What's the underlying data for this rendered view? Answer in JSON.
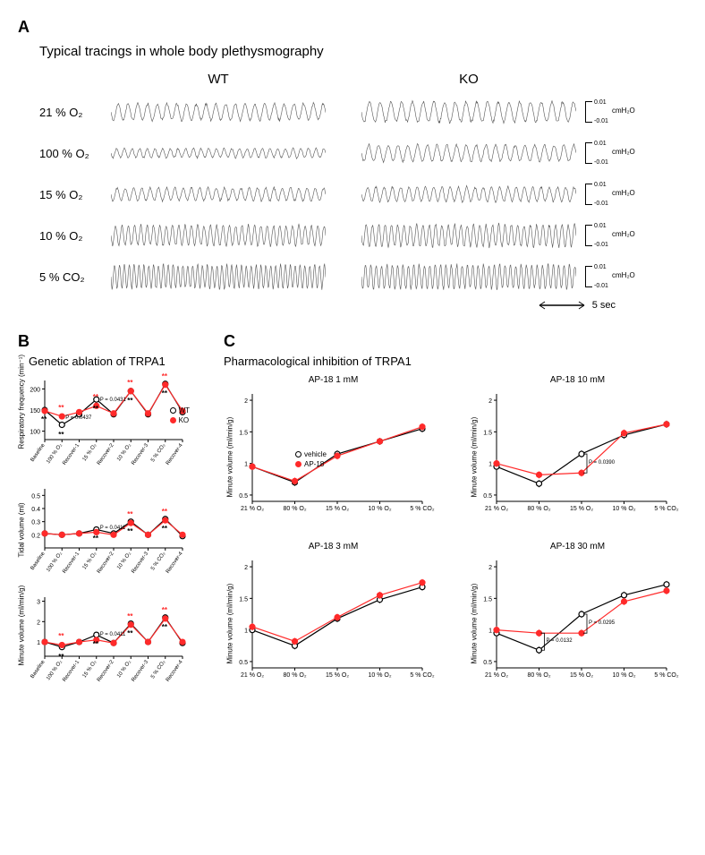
{
  "panels": {
    "A": "A",
    "B": "B",
    "C": "C"
  },
  "sectionA_title": "Typical tracings in whole body plethysmography",
  "col_headers": {
    "wt": "WT",
    "ko": "KO"
  },
  "row_labels": [
    "21 % O₂",
    "100 % O₂",
    "15 % O₂",
    "10 % O₂",
    "5 % CO₂"
  ],
  "trace_params": [
    {
      "wt": {
        "freq": 22,
        "amp": 9
      },
      "ko": {
        "freq": 20,
        "amp": 11
      }
    },
    {
      "wt": {
        "freq": 28,
        "amp": 5
      },
      "ko": {
        "freq": 22,
        "amp": 9
      }
    },
    {
      "wt": {
        "freq": 26,
        "amp": 7
      },
      "ko": {
        "freq": 26,
        "amp": 8
      }
    },
    {
      "wt": {
        "freq": 34,
        "amp": 11
      },
      "ko": {
        "freq": 34,
        "amp": 12
      }
    },
    {
      "wt": {
        "freq": 44,
        "amp": 13
      },
      "ko": {
        "freq": 40,
        "amp": 13
      }
    }
  ],
  "scale": {
    "top": "0.01",
    "bot": "-0.01",
    "unit": "cmH₂O"
  },
  "timebar": "5 sec",
  "colors": {
    "trace": "#555555",
    "wt_marker_fill": "#ffffff",
    "wt_marker_stroke": "#000000",
    "wt_line": "#000000",
    "ko_marker_fill": "#ff2a2a",
    "ko_marker_stroke": "#ff2a2a",
    "ko_line": "#ff2a2a",
    "axis": "#000000",
    "sig_red": "#ff2a2a"
  },
  "panelB": {
    "title": "Genetic ablation of TRPA1",
    "x_categories": [
      "Baseline",
      "100 % O₂",
      "Recover-1",
      "15 % O₂",
      "Recover-2",
      "10 % O₂",
      "Recover-3",
      "5 % CO₂",
      "Recover-4"
    ],
    "charts": [
      {
        "ylabel": "Respiratory frequency (min⁻¹)",
        "ylim": [
          80,
          220
        ],
        "yticks": [
          100,
          150,
          200
        ],
        "wt": [
          150,
          115,
          140,
          175,
          140,
          195,
          140,
          212,
          145
        ],
        "ko": [
          148,
          135,
          145,
          160,
          142,
          195,
          142,
          210,
          148
        ],
        "pvals": [
          {
            "x": 1,
            "text": "P = 0.0437"
          },
          {
            "x": 3,
            "text": "P = 0.0431"
          }
        ],
        "sig_black": [
          0,
          1,
          3,
          5,
          7
        ],
        "sig_red": [
          1,
          3,
          5,
          7
        ],
        "legend": {
          "wt": "WT",
          "ko": "KO"
        }
      },
      {
        "ylabel": "Tidal volume (ml)",
        "ylim": [
          0.1,
          0.55
        ],
        "yticks": [
          0.2,
          0.3,
          0.4,
          0.5
        ],
        "wt": [
          0.21,
          0.2,
          0.21,
          0.24,
          0.21,
          0.3,
          0.2,
          0.32,
          0.19
        ],
        "ko": [
          0.21,
          0.2,
          0.21,
          0.22,
          0.2,
          0.29,
          0.2,
          0.31,
          0.2
        ],
        "pvals": [
          {
            "x": 3,
            "text": "P = 0.0411"
          }
        ],
        "sig_black": [
          3,
          5,
          7
        ],
        "sig_red": [
          5,
          7
        ]
      },
      {
        "ylabel": "Minute volume (ml/min/g)",
        "ylim": [
          0.3,
          3.2
        ],
        "yticks": [
          1,
          2,
          3
        ],
        "wt": [
          1.0,
          0.75,
          1.0,
          1.35,
          0.95,
          1.9,
          1.0,
          2.2,
          0.95
        ],
        "ko": [
          1.0,
          0.85,
          1.0,
          1.1,
          0.95,
          1.85,
          1.0,
          2.15,
          1.0
        ],
        "pvals": [
          {
            "x": 3,
            "text": "P = 0.0411"
          }
        ],
        "sig_black": [
          1,
          3,
          5,
          7
        ],
        "sig_red": [
          1,
          5,
          7
        ]
      }
    ]
  },
  "panelC": {
    "title": "Pharmacological inhibition of TRPA1",
    "x_categories": [
      "21 % O₂",
      "80 % O₂",
      "15 % O₂",
      "10 % O₂",
      "5 % CO₂"
    ],
    "ylabel": "Minute volume (ml/min/g)",
    "ylim": [
      0.4,
      2.1
    ],
    "yticks": [
      0.5,
      1.0,
      1.5,
      2.0
    ],
    "legend": {
      "v": "vehicle",
      "a": "AP-18"
    },
    "charts": [
      {
        "title": "AP-18 1 mM",
        "v": [
          0.95,
          0.7,
          1.15,
          1.35,
          1.55
        ],
        "a": [
          0.95,
          0.72,
          1.12,
          1.35,
          1.58
        ],
        "pvals": [],
        "legend": true
      },
      {
        "title": "AP-18 10 mM",
        "v": [
          0.95,
          0.68,
          1.15,
          1.45,
          1.62
        ],
        "a": [
          1.0,
          0.82,
          0.85,
          1.48,
          1.62
        ],
        "pvals": [
          {
            "x": 2,
            "text": "P = 0.0390"
          }
        ]
      },
      {
        "title": "AP-18 3 mM",
        "v": [
          1.0,
          0.75,
          1.18,
          1.48,
          1.68
        ],
        "a": [
          1.05,
          0.82,
          1.2,
          1.55,
          1.75
        ],
        "pvals": []
      },
      {
        "title": "AP-18 30 mM",
        "v": [
          0.95,
          0.68,
          1.25,
          1.55,
          1.72
        ],
        "a": [
          1.0,
          0.95,
          0.95,
          1.45,
          1.62
        ],
        "pvals": [
          {
            "x": 1,
            "text": "P = 0.0132"
          },
          {
            "x": 2,
            "text": "P = 0.0295"
          }
        ]
      }
    ]
  }
}
